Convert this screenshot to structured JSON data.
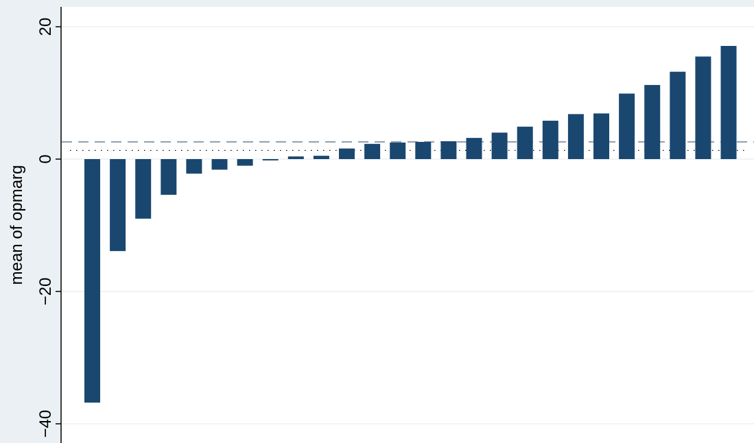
{
  "chart_data": {
    "type": "bar",
    "title": "",
    "xlabel": "",
    "ylabel": "mean of opmarg",
    "ylim": [
      -42,
      23
    ],
    "yticks": [
      20,
      0,
      -20,
      -40
    ],
    "ytick_labels": [
      "20",
      "0",
      "−20",
      "−40"
    ],
    "grid": true,
    "values": [
      -36.8,
      -13.9,
      -9.0,
      -5.4,
      -2.2,
      -1.6,
      -1.0,
      -0.2,
      0.4,
      0.5,
      1.6,
      2.3,
      2.5,
      2.6,
      2.7,
      3.2,
      4.0,
      4.9,
      5.8,
      6.8,
      6.9,
      9.9,
      11.2,
      13.2,
      15.5,
      17.1
    ],
    "reference_lines": [
      {
        "style": "dashed",
        "value": 2.6
      },
      {
        "style": "dotted",
        "value": 1.0
      }
    ]
  },
  "colors": {
    "background": "#eaf0f3",
    "plot_area": "#ffffff",
    "bar": "#1a476f",
    "gridline": "#eaf0f3",
    "dashed_line": "#8e9cae",
    "dotted_line": "#000000"
  }
}
